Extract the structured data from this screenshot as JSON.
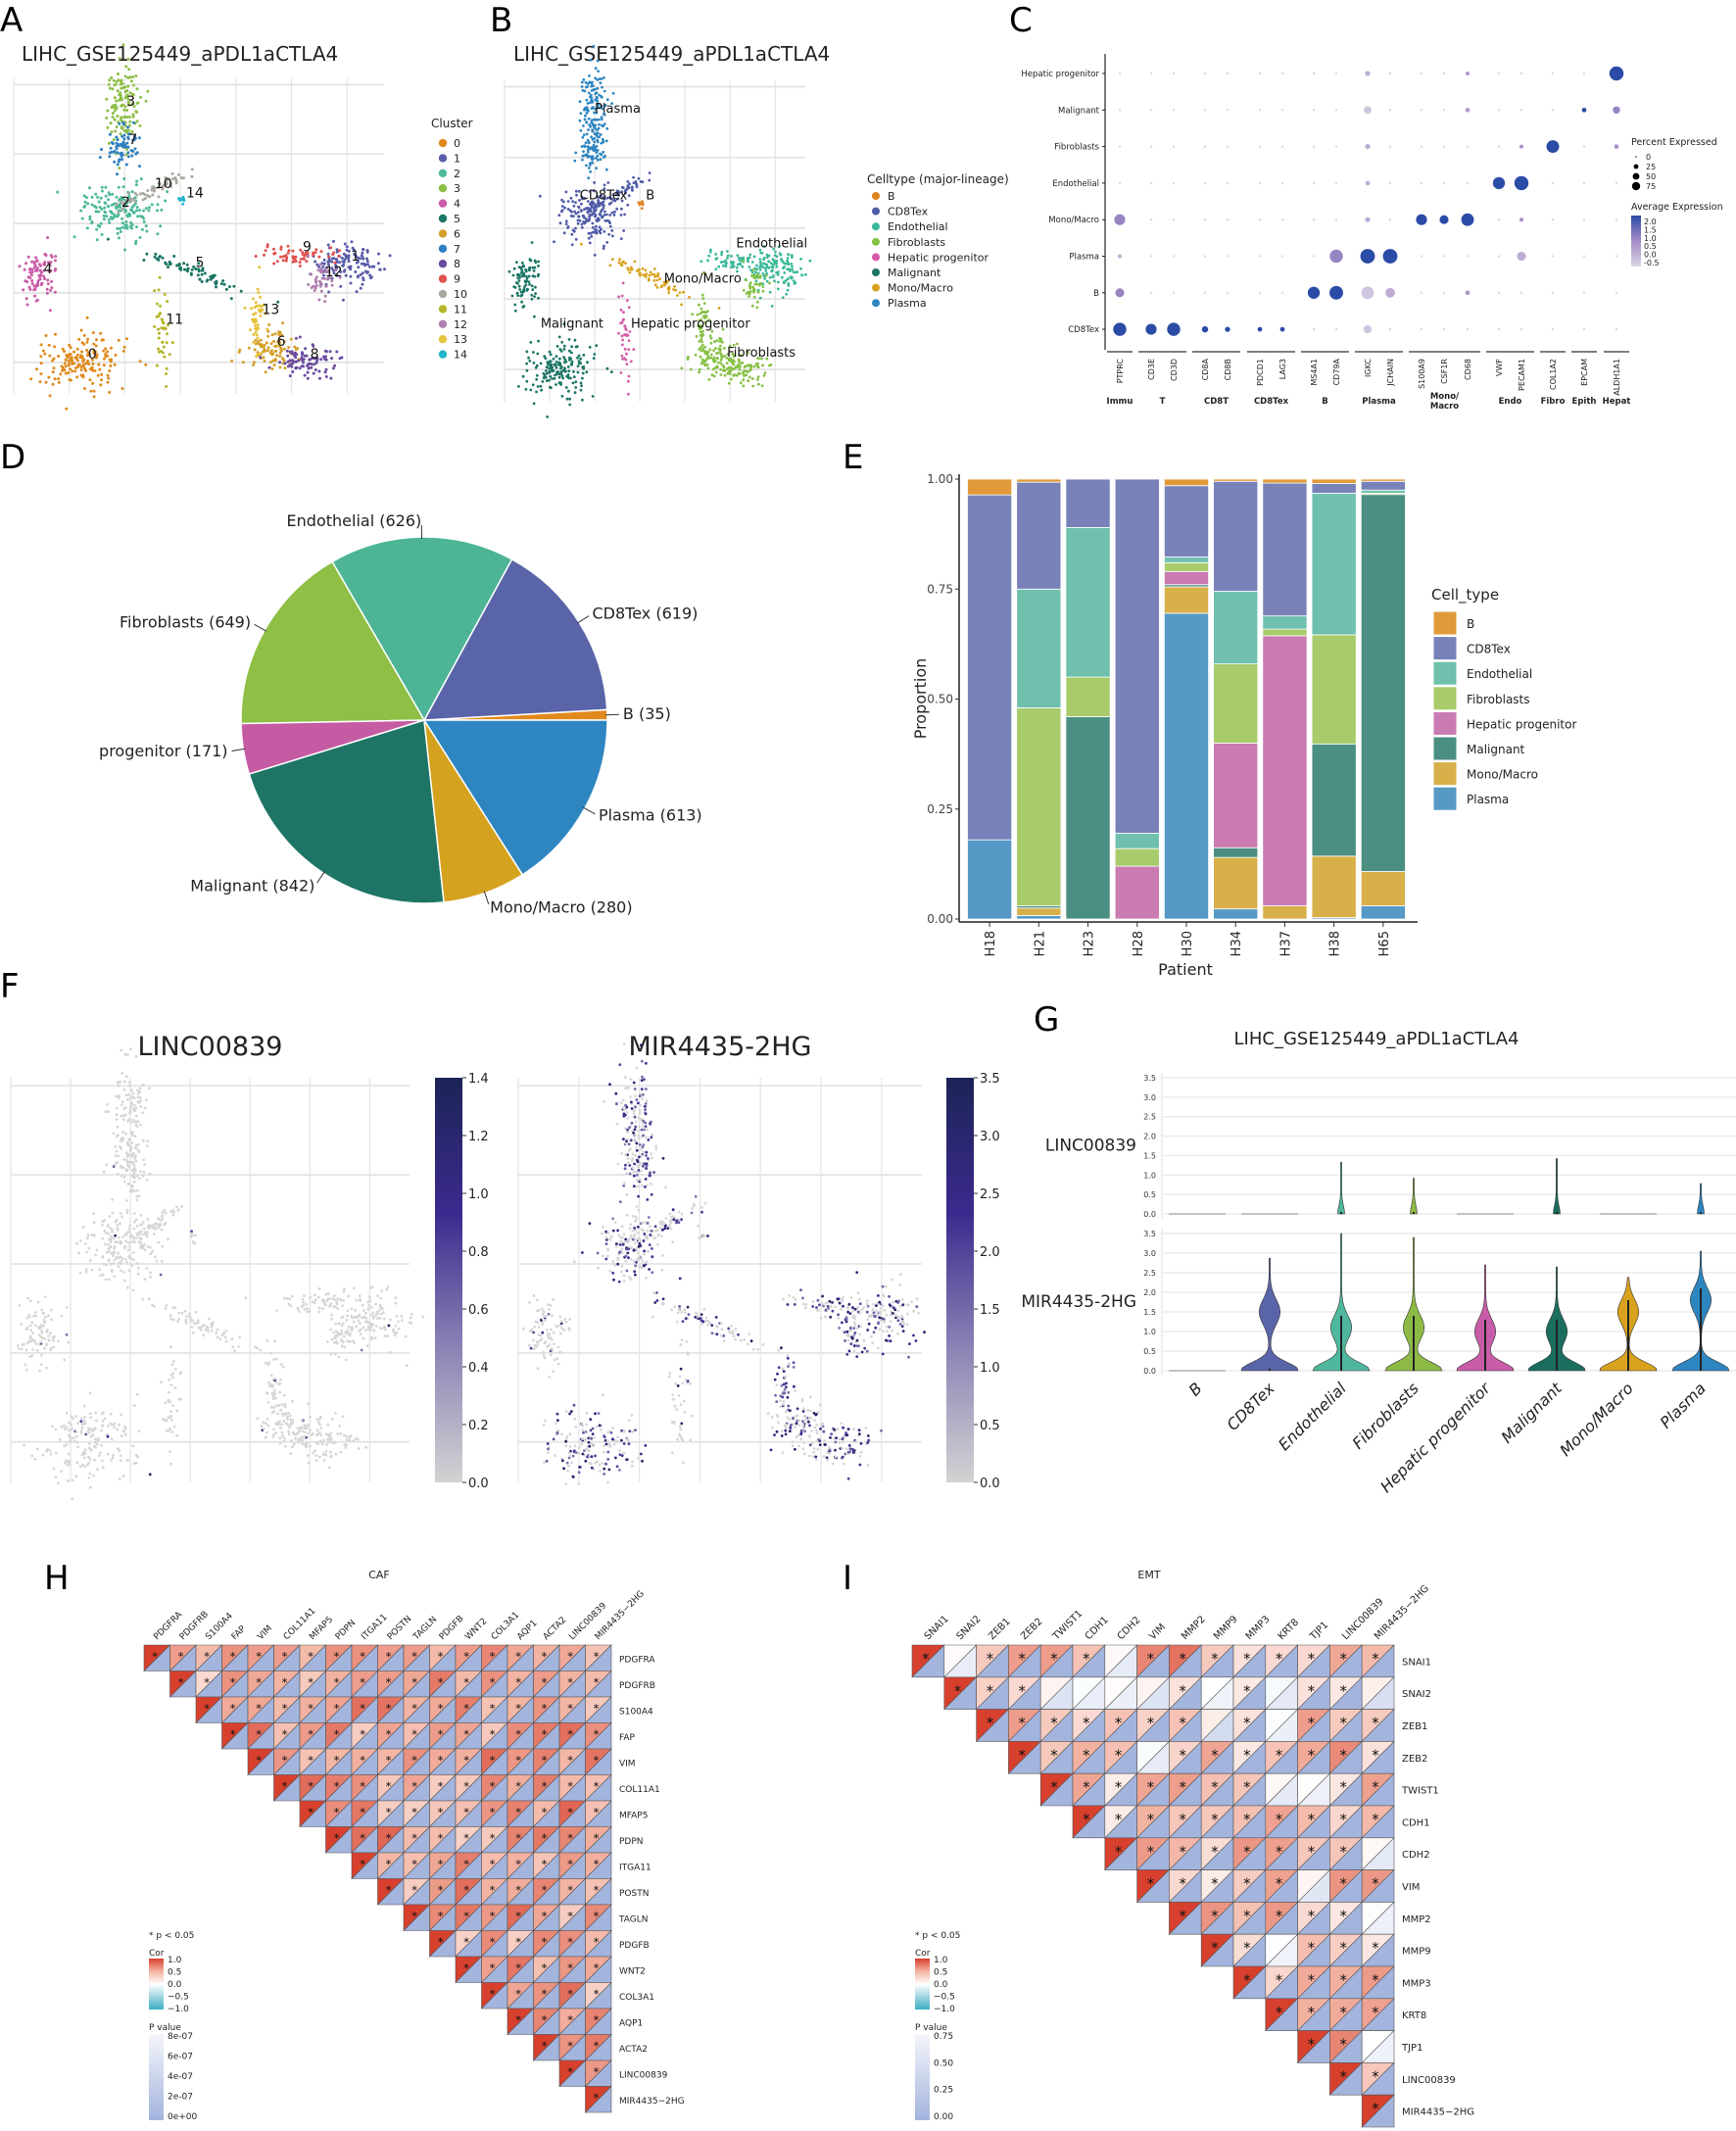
{
  "panel_letters": [
    "A",
    "B",
    "C",
    "D",
    "E",
    "F",
    "G",
    "H",
    "I"
  ],
  "umap_cluster": {
    "title": "LIHC_GSE125449_aPDL1aCTLA4",
    "legend_title": "Cluster",
    "clusters": [
      {
        "id": "0",
        "color": "#E08A1E"
      },
      {
        "id": "1",
        "color": "#5A5DAA"
      },
      {
        "id": "2",
        "color": "#4DB89A"
      },
      {
        "id": "3",
        "color": "#8DBF46"
      },
      {
        "id": "4",
        "color": "#C95BA8"
      },
      {
        "id": "5",
        "color": "#1B7565"
      },
      {
        "id": "6",
        "color": "#D4A02A"
      },
      {
        "id": "7",
        "color": "#2F7FC1"
      },
      {
        "id": "8",
        "color": "#6A4AA0"
      },
      {
        "id": "9",
        "color": "#E0524F"
      },
      {
        "id": "10",
        "color": "#A9A9A0"
      },
      {
        "id": "11",
        "color": "#B5B529"
      },
      {
        "id": "12",
        "color": "#B07FAE"
      },
      {
        "id": "13",
        "color": "#E6C33C"
      },
      {
        "id": "14",
        "color": "#21B5C9"
      }
    ]
  },
  "umap_celltype": {
    "title": "LIHC_GSE125449_aPDL1aCTLA4",
    "legend_title": "Celltype (major-lineage)",
    "types": [
      {
        "name": "B",
        "color": "#E0821E"
      },
      {
        "name": "CD8Tex",
        "color": "#4F5AA8"
      },
      {
        "name": "Endothelial",
        "color": "#3BB89A"
      },
      {
        "name": "Fibroblasts",
        "color": "#86C045"
      },
      {
        "name": "Hepatic progenitor",
        "color": "#D45BA6"
      },
      {
        "name": "Malignant",
        "color": "#1A7565"
      },
      {
        "name": "Mono/Macro",
        "color": "#D8A21F"
      },
      {
        "name": "Plasma",
        "color": "#2E86C1"
      }
    ],
    "cluster_celltype": {
      "0": "Malignant",
      "1": "Endothelial",
      "2": "CD8Tex",
      "3": "Plasma",
      "4": "Malignant",
      "5": "Mono/Macro",
      "6": "Fibroblasts",
      "7": "Plasma",
      "8": "Fibroblasts",
      "9": "Endothelial",
      "10": "CD8Tex",
      "11": "Hepatic progenitor",
      "12": "Fibroblasts",
      "13": "Fibroblasts",
      "14": "B"
    }
  },
  "chart_data": [
    {
      "id": "dotplot",
      "type": "scatter",
      "rows": [
        "Hepatic progenitor",
        "Malignant",
        "Fibroblasts",
        "Endothelial",
        "Mono/Macro",
        "Plasma",
        "B",
        "CD8Tex"
      ],
      "genes": [
        "PTPRC",
        "CD3E",
        "CD3D",
        "CD8A",
        "CD8B",
        "PDCD1",
        "LAG3",
        "MS4A1",
        "CD79A",
        "IGKC",
        "JCHAIN",
        "S100A9",
        "CSF1R",
        "CD68",
        "VWF",
        "PECAM1",
        "COL1A2",
        "EPCAM",
        "ALDH1A1"
      ],
      "groups": [
        {
          "label": "Immu",
          "genes": 1
        },
        {
          "label": "T",
          "genes": 2
        },
        {
          "label": "CD8T",
          "genes": 2
        },
        {
          "label": "CD8Tex",
          "genes": 2
        },
        {
          "label": "B",
          "genes": 2
        },
        {
          "label": "Plasma",
          "genes": 2
        },
        {
          "label": "Mono/\nMacro",
          "genes": 3
        },
        {
          "label": "Endo",
          "genes": 2
        },
        {
          "label": "Fibro",
          "genes": 1
        },
        {
          "label": "Epith",
          "genes": 1
        },
        {
          "label": "Hepat",
          "genes": 1
        }
      ],
      "default_dot": {
        "pct": 2,
        "avg": -0.5
      },
      "dots": [
        {
          "row": "Hepatic progenitor",
          "gene": "ALDH1A1",
          "pct": 75,
          "avg": 2.0
        },
        {
          "row": "Hepatic progenitor",
          "gene": "IGKC",
          "pct": 10,
          "avg": 0.0
        },
        {
          "row": "Hepatic progenitor",
          "gene": "CD68",
          "pct": 6,
          "avg": 0.2
        },
        {
          "row": "Malignant",
          "gene": "IGKC",
          "pct": 22,
          "avg": -0.3
        },
        {
          "row": "Malignant",
          "gene": "CD68",
          "pct": 8,
          "avg": 0.2
        },
        {
          "row": "Malignant",
          "gene": "EPCAM",
          "pct": 8,
          "avg": 2.0
        },
        {
          "row": "Malignant",
          "gene": "ALDH1A1",
          "pct": 20,
          "avg": 0.5
        },
        {
          "row": "Fibroblasts",
          "gene": "COL1A2",
          "pct": 60,
          "avg": 2.0
        },
        {
          "row": "Fibroblasts",
          "gene": "IGKC",
          "pct": 10,
          "avg": 0.0
        },
        {
          "row": "Fibroblasts",
          "gene": "PECAM1",
          "pct": 6,
          "avg": 0.3
        },
        {
          "row": "Fibroblasts",
          "gene": "ALDH1A1",
          "pct": 8,
          "avg": 0.3
        },
        {
          "row": "Endothelial",
          "gene": "VWF",
          "pct": 55,
          "avg": 2.0
        },
        {
          "row": "Endothelial",
          "gene": "PECAM1",
          "pct": 75,
          "avg": 2.0
        },
        {
          "row": "Endothelial",
          "gene": "IGKC",
          "pct": 8,
          "avg": 0.0
        },
        {
          "row": "Mono/Macro",
          "gene": "PTPRC",
          "pct": 45,
          "avg": 0.5
        },
        {
          "row": "Mono/Macro",
          "gene": "S100A9",
          "pct": 45,
          "avg": 2.0
        },
        {
          "row": "Mono/Macro",
          "gene": "CSF1R",
          "pct": 30,
          "avg": 2.0
        },
        {
          "row": "Mono/Macro",
          "gene": "CD68",
          "pct": 60,
          "avg": 2.0
        },
        {
          "row": "Mono/Macro",
          "gene": "IGKC",
          "pct": 10,
          "avg": 0.0
        },
        {
          "row": "Mono/Macro",
          "gene": "PECAM1",
          "pct": 6,
          "avg": 0.3
        },
        {
          "row": "Plasma",
          "gene": "CD79A",
          "pct": 65,
          "avg": 0.5
        },
        {
          "row": "Plasma",
          "gene": "IGKC",
          "pct": 80,
          "avg": 2.0
        },
        {
          "row": "Plasma",
          "gene": "JCHAIN",
          "pct": 80,
          "avg": 2.0
        },
        {
          "row": "Plasma",
          "gene": "PECAM1",
          "pct": 30,
          "avg": 0.0
        },
        {
          "row": "Plasma",
          "gene": "PTPRC",
          "pct": 6,
          "avg": 0.0
        },
        {
          "row": "B",
          "gene": "PTPRC",
          "pct": 30,
          "avg": 0.5
        },
        {
          "row": "B",
          "gene": "MS4A1",
          "pct": 55,
          "avg": 2.0
        },
        {
          "row": "B",
          "gene": "CD79A",
          "pct": 70,
          "avg": 2.0
        },
        {
          "row": "B",
          "gene": "IGKC",
          "pct": 60,
          "avg": -0.3
        },
        {
          "row": "B",
          "gene": "JCHAIN",
          "pct": 35,
          "avg": 0.0
        },
        {
          "row": "B",
          "gene": "CD68",
          "pct": 8,
          "avg": 0.3
        },
        {
          "row": "CD8Tex",
          "gene": "PTPRC",
          "pct": 65,
          "avg": 2.0
        },
        {
          "row": "CD8Tex",
          "gene": "CD3E",
          "pct": 45,
          "avg": 2.0
        },
        {
          "row": "CD8Tex",
          "gene": "CD3D",
          "pct": 65,
          "avg": 2.0
        },
        {
          "row": "CD8Tex",
          "gene": "CD8A",
          "pct": 15,
          "avg": 2.0
        },
        {
          "row": "CD8Tex",
          "gene": "CD8B",
          "pct": 10,
          "avg": 2.0
        },
        {
          "row": "CD8Tex",
          "gene": "PDCD1",
          "pct": 8,
          "avg": 2.0
        },
        {
          "row": "CD8Tex",
          "gene": "LAG3",
          "pct": 8,
          "avg": 2.0
        },
        {
          "row": "CD8Tex",
          "gene": "IGKC",
          "pct": 25,
          "avg": -0.3
        }
      ],
      "size_legend": {
        "title": "Percent Expressed",
        "values": [
          0,
          25,
          50,
          75
        ]
      },
      "color_legend": {
        "title": "Average Expression",
        "ticks": [
          "2.0",
          "1.5",
          "1.0",
          "0.5",
          "0.0",
          "-0.5"
        ],
        "range": [
          -0.5,
          2.2
        ]
      }
    },
    {
      "id": "pie",
      "type": "pie",
      "slices": [
        {
          "name": "B",
          "value": 35,
          "label": "B (35)",
          "color": "#E08A1E"
        },
        {
          "name": "CD8Tex",
          "value": 619,
          "label": "CD8Tex (619)",
          "color": "#5A64A8"
        },
        {
          "name": "Endothelial",
          "value": 626,
          "label": "Endothelial (626)",
          "color": "#4DB596"
        },
        {
          "name": "Fibroblasts",
          "value": 649,
          "label": "Fibroblasts (649)",
          "color": "#8FBF45"
        },
        {
          "name": "Hepatic progenitor",
          "value": 171,
          "label": "progenitor (171)",
          "color": "#C55BA3"
        },
        {
          "name": "Malignant",
          "value": 842,
          "label": "Malignant (842)",
          "color": "#1E7565"
        },
        {
          "name": "Mono/Macro",
          "value": 280,
          "label": "Mono/Macro (280)",
          "color": "#D4A21F"
        },
        {
          "name": "Plasma",
          "value": 613,
          "label": "Plasma (613)",
          "color": "#2E86C1"
        }
      ]
    },
    {
      "id": "stacked-bar",
      "type": "bar",
      "stacked": true,
      "categories": [
        "H18",
        "H21",
        "H23",
        "H28",
        "H30",
        "H34",
        "H37",
        "H38",
        "H65"
      ],
      "xlabel": "Patient",
      "ylabel": "Proportion",
      "ylim": [
        0,
        1
      ],
      "yticks": [
        "0.00",
        "0.25",
        "0.50",
        "0.75",
        "1.00"
      ],
      "legend_title": "Cell_type",
      "legend_position": "right",
      "series": [
        {
          "name": "Plasma",
          "color": "#5699C6",
          "values": [
            0.18,
            0.008,
            0,
            0,
            0.695,
            0.023,
            0,
            0.003,
            0.03
          ]
        },
        {
          "name": "Mono/Macro",
          "color": "#D8B04A",
          "values": [
            0,
            0.017,
            0,
            0,
            0.06,
            0.117,
            0.03,
            0.14,
            0.078
          ]
        },
        {
          "name": "Malignant",
          "color": "#4B8F82",
          "values": [
            0,
            0.005,
            0.46,
            0,
            0.005,
            0.022,
            0,
            0.255,
            0.857
          ]
        },
        {
          "name": "Hepatic progenitor",
          "color": "#CA7BB2",
          "values": [
            0,
            0,
            0,
            0.12,
            0.03,
            0.238,
            0.614,
            0,
            0
          ]
        },
        {
          "name": "Fibroblasts",
          "color": "#A8CB6B",
          "values": [
            0,
            0.45,
            0.09,
            0.04,
            0.02,
            0.18,
            0.015,
            0.248,
            0.003
          ]
        },
        {
          "name": "Endothelial",
          "color": "#6FC0AD",
          "values": [
            0,
            0.27,
            0.34,
            0.035,
            0.013,
            0.165,
            0.03,
            0.322,
            0.007
          ]
        },
        {
          "name": "CD8Tex",
          "color": "#7882B8",
          "values": [
            0.784,
            0.243,
            0.11,
            0.805,
            0.162,
            0.25,
            0.302,
            0.022,
            0.02
          ]
        },
        {
          "name": "B",
          "color": "#E09A3A",
          "values": [
            0.036,
            0.007,
            0,
            0,
            0.015,
            0.005,
            0.009,
            0.01,
            0.005
          ]
        }
      ],
      "legend_order": [
        "B",
        "CD8Tex",
        "Endothelial",
        "Fibroblasts",
        "Hepatic progenitor",
        "Malignant",
        "Mono/Macro",
        "Plasma"
      ]
    },
    {
      "id": "feature-plots",
      "type": "scatter",
      "plots": [
        {
          "gene": "LINC00839",
          "scale_max": 1.4,
          "ticks": [
            "1.4",
            "1.2",
            "1.0",
            "0.8",
            "0.6",
            "0.4",
            "0.2",
            "0.0"
          ],
          "expressing_fraction": 0.015
        },
        {
          "gene": "MIR4435-2HG",
          "scale_max": 3.5,
          "ticks": [
            "3.5",
            "3.0",
            "2.5",
            "2.0",
            "1.5",
            "1.0",
            "0.5",
            "0.0"
          ],
          "expressing_fraction": 0.3
        }
      ]
    },
    {
      "id": "violin",
      "type": "violin",
      "title": "LIHC_GSE125449_aPDL1aCTLA4",
      "categories": [
        "B",
        "CD8Tex",
        "Endothelial",
        "Fibroblasts",
        "Hepatic progenitor",
        "Malignant",
        "Mono/Macro",
        "Plasma"
      ],
      "colors": [
        "#E0821E",
        "#5A64A8",
        "#4FB79D",
        "#8DBA45",
        "#C85CA8",
        "#1A6E5E",
        "#D8A21F",
        "#2E86C1"
      ],
      "ylim": [
        0,
        3.5
      ],
      "yticks": [
        "0.0",
        "0.5",
        "1.0",
        "1.5",
        "2.0",
        "2.5",
        "3.0",
        "3.5"
      ],
      "genes": [
        {
          "name": "LINC00839",
          "max": [
            0,
            0,
            1.33,
            0.92,
            0,
            1.42,
            0,
            0.78
          ],
          "upper_mode": [
            0,
            0,
            0,
            0,
            0,
            0,
            0,
            0
          ],
          "median": [
            0,
            0,
            0,
            0,
            0,
            0,
            0,
            0
          ]
        },
        {
          "name": "MIR4435-2HG",
          "max": [
            0,
            2.87,
            3.5,
            3.4,
            2.7,
            2.65,
            2.38,
            3.05
          ],
          "upper_mode": [
            0,
            1.5,
            1.1,
            1.1,
            1.0,
            1.0,
            1.5,
            1.8
          ],
          "median": [
            0,
            0,
            0.6,
            0.6,
            0.5,
            0.1,
            0.1,
            0.2
          ]
        }
      ]
    },
    {
      "id": "corr-caf",
      "type": "heatmap",
      "title": "CAF",
      "genes": [
        "PDGFRA",
        "PDGFRB",
        "S100A4",
        "FAP",
        "VIM",
        "COL11A1",
        "MFAP5",
        "PDPN",
        "ITGA11",
        "POSTN",
        "TAGLN",
        "PDGFB",
        "WNT2",
        "COL3A1",
        "AQP1",
        "ACTA2",
        "LINC00839",
        "MIR4435−2HG"
      ],
      "known_rows": {
        "0": [
          1,
          0.6,
          0.45,
          0.65,
          0.6,
          0.6,
          0.45,
          0.65,
          0.65,
          0.6,
          0.6,
          0.45,
          0.6,
          0.7,
          0.55,
          0.5,
          0.55,
          0.4
        ],
        "1": [
          null,
          1,
          0.25,
          0.65,
          0.55,
          0.5,
          0.35,
          0.5,
          0.6,
          0.6,
          0.55,
          0.75,
          0.45,
          0.65,
          0.5,
          0.6,
          0.5,
          0.45
        ]
      },
      "random_range": [
        0.3,
        0.85
      ],
      "significance_note": "* p < 0.05",
      "cor_legend": {
        "title": "Cor",
        "ticks": [
          "1.0",
          "0.5",
          "0.0",
          "−0.5",
          "−1.0"
        ]
      },
      "p_legend": {
        "title": "P value",
        "ticks": [
          "8e-07",
          "6e-07",
          "4e-07",
          "2e-07",
          "0e+00"
        ]
      }
    },
    {
      "id": "corr-emt",
      "type": "heatmap",
      "title": "EMT",
      "genes": [
        "SNAI1",
        "SNAI2",
        "ZEB1",
        "ZEB2",
        "TWIST1",
        "CDH1",
        "CDH2",
        "VIM",
        "MMP2",
        "MMP9",
        "MMP3",
        "KRT8",
        "TJP1",
        "LINC00839",
        "MIR4435−2HG"
      ],
      "known_rows": {
        "0": [
          1,
          0.03,
          0.35,
          0.6,
          0.6,
          0.4,
          0.04,
          0.7,
          0.78,
          0.35,
          0.2,
          0.25,
          0.25,
          0.55,
          0.45
        ],
        "1": [
          null,
          1,
          0.3,
          0.25,
          0.08,
          -0.03,
          0.02,
          0.08,
          0.2,
          0.0,
          0.15,
          -0.05,
          0.2,
          0.15,
          0.1
        ],
        "2": [
          null,
          null,
          1,
          0.6,
          0.35,
          0.25,
          0.4,
          0.3,
          0.4,
          0.12,
          0.2,
          -0.02,
          0.6,
          0.35,
          0.35
        ]
      },
      "random_range": [
        -0.05,
        0.7
      ],
      "significance_note": "* p < 0.05",
      "cor_legend": {
        "title": "Cor",
        "ticks": [
          "1.0",
          "0.5",
          "0.0",
          "−0.5",
          "−1.0"
        ]
      },
      "p_legend": {
        "title": "P value",
        "ticks": [
          "0.75",
          "0.50",
          "0.25",
          "0.00"
        ]
      }
    }
  ]
}
